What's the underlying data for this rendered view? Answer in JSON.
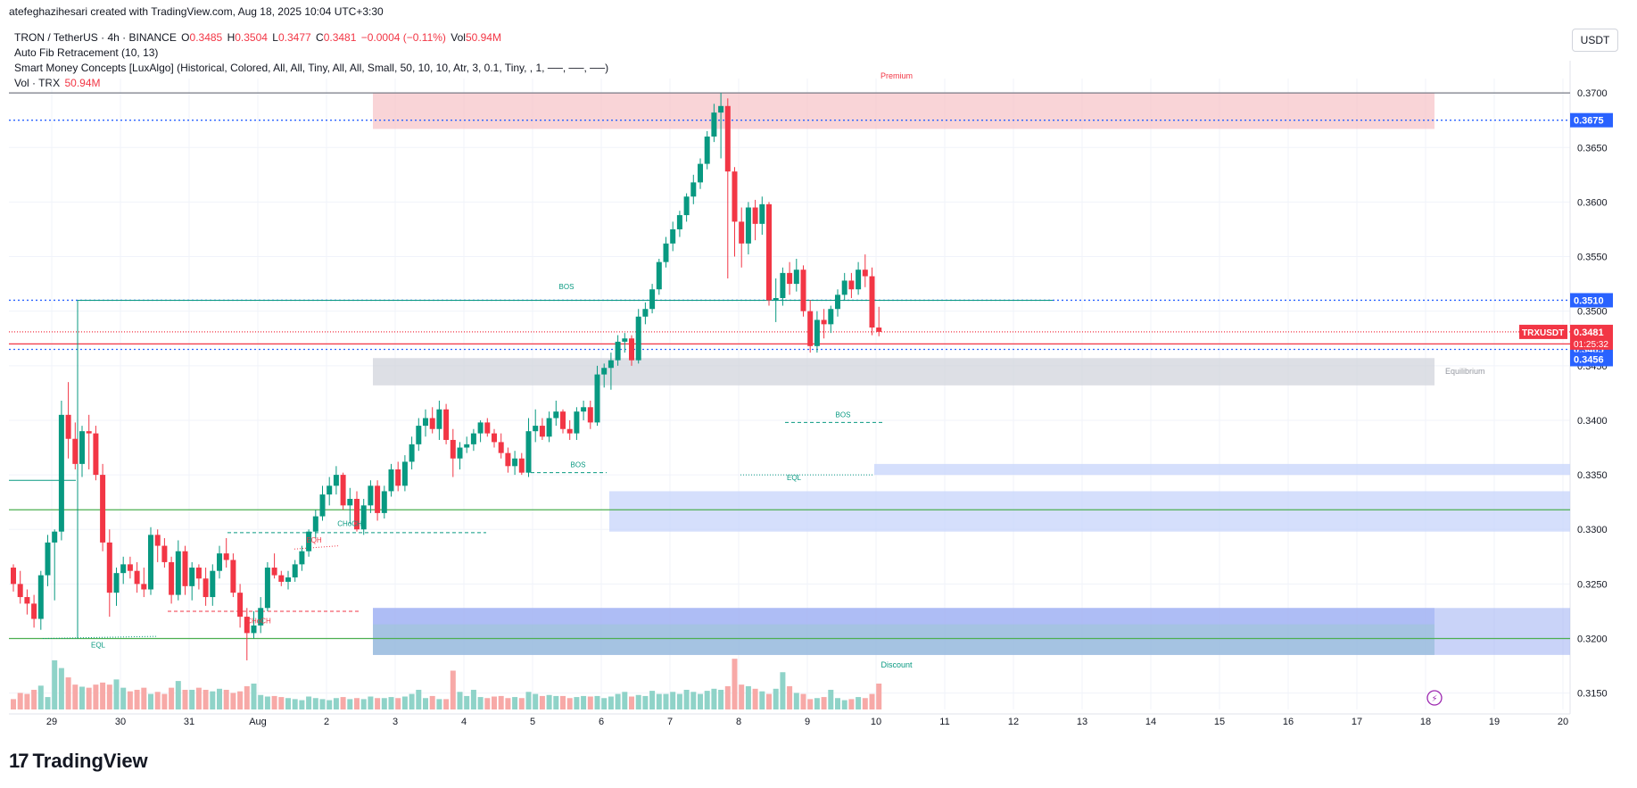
{
  "header": {
    "attribution": "atefeghazihesari created with TradingView.com, Aug 18, 2025 10:04 UTC+3:30"
  },
  "legend": {
    "symbol": "TRON / TetherUS · 4h · BINANCE",
    "o_label": "O",
    "o_value": "0.3485",
    "h_label": "H",
    "h_value": "0.3504",
    "l_label": "L",
    "l_value": "0.3477",
    "c_label": "C",
    "c_value": "0.3481",
    "change": "−0.0004 (−0.11%)",
    "vol_label": "Vol",
    "vol_value": "50.94M",
    "ind1": "Auto Fib Retracement (10, 13)",
    "ind2": "Smart Money Concepts [LuxAlgo] (Historical, Colored, All, All, Tiny, All, All, Small, 50, 10, 10, Atr, 3, 0.1, Tiny, , 1, ──, ──, ──)",
    "ind3_label": "Vol · TRX",
    "ind3_value": "50.94M"
  },
  "unit_button": "USDT",
  "brand": {
    "name": "TradingView",
    "logo": "17"
  },
  "chart_data": {
    "type": "candlestick",
    "symbol": "TRXUSDT",
    "timeframe": "4h",
    "ylim": [
      0.3135,
      0.3705
    ],
    "y_ticks": [
      "0.3700",
      "0.3650",
      "0.3600",
      "0.3550",
      "0.3500",
      "0.3450",
      "0.3400",
      "0.3350",
      "0.3300",
      "0.3250",
      "0.3200",
      "0.3150"
    ],
    "x_ticks": [
      "29",
      "30",
      "31",
      "Aug",
      "2",
      "3",
      "4",
      "5",
      "6",
      "7",
      "8",
      "9",
      "10",
      "11",
      "12",
      "13",
      "14",
      "15",
      "16",
      "17",
      "18",
      "19",
      "20"
    ],
    "price_labels": [
      {
        "text": "0.3675",
        "value": 0.3675,
        "color": "#2962ff"
      },
      {
        "text": "0.3510",
        "value": 0.351,
        "color": "#2962ff"
      },
      {
        "text": "0.3481",
        "value": 0.3481,
        "color": "#f23645"
      },
      {
        "text": "01:25:32",
        "value": 0.347,
        "color": "#f23645"
      },
      {
        "text": "0.3465",
        "value": 0.3465,
        "color": "#2962ff"
      },
      {
        "text": "0.3456",
        "value": 0.3456,
        "color": "#2962ff"
      }
    ],
    "last_price_tag": "TRXUSDT",
    "zone_labels": {
      "premium": "Premium",
      "equilibrium": "Equilibrium",
      "discount": "Discount"
    },
    "structure_labels": [
      {
        "text": "BOS",
        "color": "#089981"
      },
      {
        "text": "BOS",
        "color": "#089981"
      },
      {
        "text": "BOS",
        "color": "#089981"
      },
      {
        "text": "CHoCH",
        "color": "#089981"
      },
      {
        "text": "CHoCH",
        "color": "#f23645"
      },
      {
        "text": "EQH",
        "color": "#f23645"
      },
      {
        "text": "EQL",
        "color": "#089981"
      },
      {
        "text": "EQL",
        "color": "#089981"
      }
    ],
    "colors": {
      "up": "#089981",
      "down": "#f23645",
      "vol_up": "#8fd3c8",
      "vol_down": "#f7a9a7"
    },
    "candles": [
      [
        0.3265,
        0.3268,
        0.3243,
        0.325
      ],
      [
        0.325,
        0.3262,
        0.3232,
        0.3238
      ],
      [
        0.3238,
        0.3245,
        0.3222,
        0.3232
      ],
      [
        0.3232,
        0.324,
        0.321,
        0.3218
      ],
      [
        0.3218,
        0.3262,
        0.3208,
        0.3258
      ],
      [
        0.3258,
        0.3295,
        0.3248,
        0.3288
      ],
      [
        0.3288,
        0.33,
        0.3235,
        0.3298
      ],
      [
        0.3298,
        0.3418,
        0.329,
        0.3405
      ],
      [
        0.3405,
        0.3435,
        0.3365,
        0.3383
      ],
      [
        0.3383,
        0.3398,
        0.3355,
        0.336
      ],
      [
        0.336,
        0.3395,
        0.3348,
        0.339
      ],
      [
        0.339,
        0.3405,
        0.3355,
        0.3388
      ],
      [
        0.3388,
        0.3395,
        0.3345,
        0.335
      ],
      [
        0.335,
        0.336,
        0.328,
        0.3288
      ],
      [
        0.3288,
        0.33,
        0.322,
        0.3242
      ],
      [
        0.3242,
        0.3265,
        0.323,
        0.326
      ],
      [
        0.326,
        0.3275,
        0.325,
        0.3268
      ],
      [
        0.3268,
        0.3275,
        0.3255,
        0.3262
      ],
      [
        0.3262,
        0.327,
        0.3242,
        0.325
      ],
      [
        0.325,
        0.3265,
        0.3238,
        0.3245
      ],
      [
        0.3245,
        0.3302,
        0.324,
        0.3295
      ],
      [
        0.3295,
        0.33,
        0.327,
        0.3285
      ],
      [
        0.3285,
        0.3292,
        0.3265,
        0.327
      ],
      [
        0.327,
        0.3275,
        0.3232,
        0.324
      ],
      [
        0.324,
        0.329,
        0.3235,
        0.328
      ],
      [
        0.328,
        0.3285,
        0.324,
        0.3248
      ],
      [
        0.3248,
        0.327,
        0.3235,
        0.3265
      ],
      [
        0.3265,
        0.3268,
        0.3245,
        0.3255
      ],
      [
        0.3255,
        0.3265,
        0.323,
        0.3238
      ],
      [
        0.3238,
        0.3268,
        0.323,
        0.3262
      ],
      [
        0.3262,
        0.3285,
        0.3255,
        0.3278
      ],
      [
        0.3278,
        0.3292,
        0.3265,
        0.3272
      ],
      [
        0.3272,
        0.3278,
        0.3238,
        0.3242
      ],
      [
        0.3242,
        0.325,
        0.321,
        0.322
      ],
      [
        0.322,
        0.3228,
        0.318,
        0.3205
      ],
      [
        0.3205,
        0.3225,
        0.32,
        0.3212
      ],
      [
        0.3212,
        0.3238,
        0.3205,
        0.3228
      ],
      [
        0.3228,
        0.327,
        0.3225,
        0.3265
      ],
      [
        0.3265,
        0.3278,
        0.3255,
        0.3258
      ],
      [
        0.3258,
        0.3262,
        0.3248,
        0.3252
      ],
      [
        0.3252,
        0.3262,
        0.3245,
        0.3256
      ],
      [
        0.3256,
        0.3272,
        0.3252,
        0.3268
      ],
      [
        0.3268,
        0.3285,
        0.3262,
        0.328
      ],
      [
        0.328,
        0.33,
        0.3275,
        0.3298
      ],
      [
        0.3298,
        0.3318,
        0.3292,
        0.3312
      ],
      [
        0.3312,
        0.334,
        0.3308,
        0.3332
      ],
      [
        0.3332,
        0.3348,
        0.3322,
        0.334
      ],
      [
        0.334,
        0.3358,
        0.3332,
        0.335
      ],
      [
        0.335,
        0.3352,
        0.3318,
        0.3322
      ],
      [
        0.3322,
        0.3338,
        0.3305,
        0.3328
      ],
      [
        0.3328,
        0.3335,
        0.3298,
        0.33
      ],
      [
        0.33,
        0.3328,
        0.3295,
        0.3322
      ],
      [
        0.3322,
        0.3345,
        0.3315,
        0.334
      ],
      [
        0.334,
        0.3345,
        0.3308,
        0.3315
      ],
      [
        0.3315,
        0.334,
        0.331,
        0.3335
      ],
      [
        0.3335,
        0.336,
        0.333,
        0.3355
      ],
      [
        0.3355,
        0.3362,
        0.3335,
        0.334
      ],
      [
        0.334,
        0.3368,
        0.3335,
        0.3362
      ],
      [
        0.3362,
        0.3385,
        0.3355,
        0.3378
      ],
      [
        0.3378,
        0.3402,
        0.3372,
        0.3395
      ],
      [
        0.3395,
        0.341,
        0.3385,
        0.3402
      ],
      [
        0.3402,
        0.3412,
        0.3388,
        0.3392
      ],
      [
        0.3392,
        0.3418,
        0.3382,
        0.341
      ],
      [
        0.341,
        0.3415,
        0.3378,
        0.3382
      ],
      [
        0.3382,
        0.3392,
        0.3348,
        0.3365
      ],
      [
        0.3365,
        0.338,
        0.3355,
        0.3375
      ],
      [
        0.3375,
        0.3385,
        0.337,
        0.3378
      ],
      [
        0.3378,
        0.3392,
        0.3372,
        0.3388
      ],
      [
        0.3388,
        0.34,
        0.338,
        0.3398
      ],
      [
        0.3398,
        0.3402,
        0.3385,
        0.3388
      ],
      [
        0.3388,
        0.3392,
        0.3375,
        0.338
      ],
      [
        0.338,
        0.3388,
        0.3365,
        0.337
      ],
      [
        0.337,
        0.3375,
        0.3352,
        0.3358
      ],
      [
        0.3358,
        0.3372,
        0.335,
        0.3365
      ],
      [
        0.3365,
        0.337,
        0.335,
        0.3352
      ],
      [
        0.3352,
        0.3402,
        0.3348,
        0.339
      ],
      [
        0.339,
        0.341,
        0.338,
        0.3395
      ],
      [
        0.3395,
        0.3402,
        0.3382,
        0.3385
      ],
      [
        0.3385,
        0.3408,
        0.338,
        0.3402
      ],
      [
        0.3402,
        0.3418,
        0.3395,
        0.3408
      ],
      [
        0.3408,
        0.341,
        0.3388,
        0.3392
      ],
      [
        0.3392,
        0.34,
        0.3382,
        0.3388
      ],
      [
        0.3388,
        0.3412,
        0.3382,
        0.3408
      ],
      [
        0.3408,
        0.3418,
        0.34,
        0.3412
      ],
      [
        0.3412,
        0.3418,
        0.3392,
        0.3398
      ],
      [
        0.3398,
        0.345,
        0.3395,
        0.3442
      ],
      [
        0.3442,
        0.3452,
        0.343,
        0.3448
      ],
      [
        0.3448,
        0.3462,
        0.3428,
        0.3455
      ],
      [
        0.3455,
        0.3478,
        0.345,
        0.3472
      ],
      [
        0.3472,
        0.348,
        0.3462,
        0.3475
      ],
      [
        0.3475,
        0.3478,
        0.345,
        0.3455
      ],
      [
        0.3455,
        0.3502,
        0.3452,
        0.3495
      ],
      [
        0.3495,
        0.3508,
        0.3488,
        0.3502
      ],
      [
        0.3502,
        0.3525,
        0.3498,
        0.352
      ],
      [
        0.352,
        0.3548,
        0.3515,
        0.3545
      ],
      [
        0.3545,
        0.3568,
        0.354,
        0.3562
      ],
      [
        0.3562,
        0.3582,
        0.3555,
        0.3575
      ],
      [
        0.3575,
        0.3592,
        0.3568,
        0.3588
      ],
      [
        0.3588,
        0.3608,
        0.3582,
        0.3605
      ],
      [
        0.3605,
        0.3625,
        0.3598,
        0.3618
      ],
      [
        0.3618,
        0.364,
        0.3612,
        0.3635
      ],
      [
        0.3635,
        0.3665,
        0.363,
        0.366
      ],
      [
        0.366,
        0.369,
        0.3655,
        0.3682
      ],
      [
        0.3682,
        0.37,
        0.364,
        0.3688
      ],
      [
        0.3688,
        0.3695,
        0.353,
        0.3628
      ],
      [
        0.3628,
        0.3632,
        0.355,
        0.3582
      ],
      [
        0.3582,
        0.3595,
        0.354,
        0.3562
      ],
      [
        0.3562,
        0.36,
        0.3552,
        0.3595
      ],
      [
        0.3595,
        0.3602,
        0.3565,
        0.358
      ],
      [
        0.358,
        0.3605,
        0.357,
        0.3598
      ],
      [
        0.3598,
        0.36,
        0.3505,
        0.351
      ],
      [
        0.351,
        0.353,
        0.349,
        0.3512
      ],
      [
        0.3512,
        0.354,
        0.3505,
        0.3535
      ],
      [
        0.3535,
        0.3545,
        0.3515,
        0.3525
      ],
      [
        0.3525,
        0.3548,
        0.3518,
        0.3538
      ],
      [
        0.3538,
        0.3542,
        0.3495,
        0.35
      ],
      [
        0.35,
        0.351,
        0.3462,
        0.3468
      ],
      [
        0.3468,
        0.35,
        0.3462,
        0.3492
      ],
      [
        0.3492,
        0.3502,
        0.3475,
        0.3488
      ],
      [
        0.3488,
        0.3505,
        0.348,
        0.3502
      ],
      [
        0.3502,
        0.352,
        0.3495,
        0.3515
      ],
      [
        0.3515,
        0.3535,
        0.351,
        0.3528
      ],
      [
        0.3528,
        0.3535,
        0.3512,
        0.352
      ],
      [
        0.352,
        0.3545,
        0.3515,
        0.3538
      ],
      [
        0.3538,
        0.3552,
        0.3522,
        0.3532
      ],
      [
        0.3532,
        0.354,
        0.3478,
        0.3485
      ],
      [
        0.3485,
        0.3504,
        0.3477,
        0.3481
      ]
    ],
    "volumes": [
      20,
      32,
      30,
      38,
      46,
      24,
      95,
      80,
      62,
      48,
      44,
      42,
      48,
      52,
      48,
      58,
      42,
      35,
      38,
      42,
      30,
      34,
      30,
      42,
      55,
      38,
      38,
      42,
      38,
      35,
      40,
      38,
      32,
      35,
      45,
      50,
      28,
      25,
      26,
      24,
      22,
      20,
      18,
      25,
      22,
      20,
      18,
      22,
      24,
      20,
      22,
      20,
      25,
      22,
      22,
      24,
      22,
      25,
      30,
      38,
      22,
      26,
      20,
      20,
      75,
      34,
      26,
      38,
      24,
      22,
      25,
      26,
      22,
      24,
      22,
      34,
      30,
      26,
      28,
      26,
      26,
      22,
      24,
      26,
      25,
      26,
      22,
      25,
      30,
      34,
      25,
      28,
      26,
      36,
      30,
      30,
      34,
      30,
      38,
      34,
      30,
      36,
      40,
      38,
      45,
      98,
      48,
      45,
      40,
      35,
      30,
      40,
      72,
      45,
      32,
      30,
      20,
      22,
      24,
      38,
      22,
      18,
      20,
      24,
      22,
      30,
      50
    ],
    "zones": [
      {
        "name": "premium",
        "from": 0.37,
        "to": 0.3667,
        "color": "#f7c6c9"
      },
      {
        "name": "equilibrium",
        "from": 0.3457,
        "to": 0.3432,
        "color": "#d1d4dc"
      },
      {
        "name": "discount",
        "from": 0.3228,
        "to": 0.3185,
        "color": "#a5b6f4"
      }
    ]
  }
}
